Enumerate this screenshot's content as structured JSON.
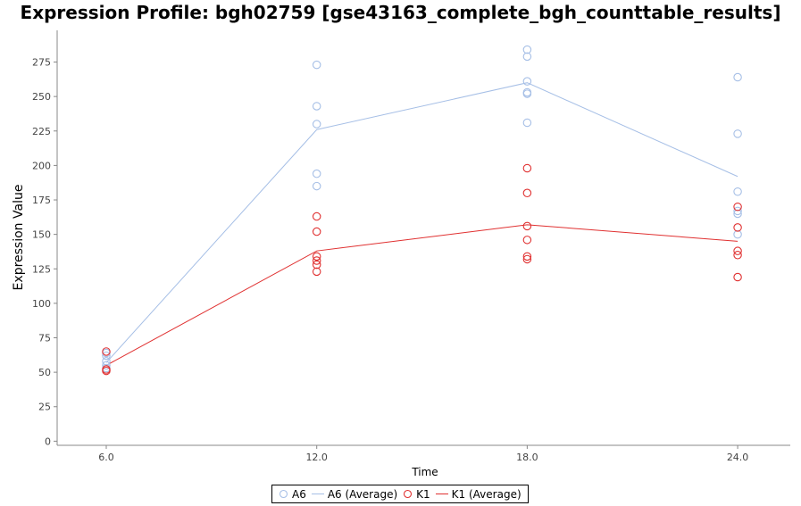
{
  "chart_data": {
    "type": "scatter",
    "title": "Expression Profile: bgh02759 [gse43163_complete_bgh_counttable_results]",
    "xlabel": "Time",
    "ylabel": "Expression Value",
    "x_ticks": [
      "6.0",
      "12.0",
      "18.0",
      "24.0"
    ],
    "y_ticks": [
      "0",
      "25",
      "50",
      "75",
      "100",
      "125",
      "150",
      "175",
      "200",
      "225",
      "250",
      "275"
    ],
    "xlim": [
      4.6,
      25.5
    ],
    "ylim": [
      -3,
      298
    ],
    "grid": false,
    "legend_position": "bottom-center",
    "series": [
      {
        "name": "A6",
        "kind": "points",
        "color": "#a6bfe6",
        "points": [
          [
            6,
            55
          ],
          [
            6,
            58
          ],
          [
            6,
            62
          ],
          [
            6,
            64
          ],
          [
            6,
            53
          ],
          [
            12,
            273
          ],
          [
            12,
            243
          ],
          [
            12,
            230
          ],
          [
            12,
            194
          ],
          [
            12,
            185
          ],
          [
            18,
            284
          ],
          [
            18,
            279
          ],
          [
            18,
            261
          ],
          [
            18,
            253
          ],
          [
            18,
            252
          ],
          [
            18,
            231
          ],
          [
            24,
            264
          ],
          [
            24,
            223
          ],
          [
            24,
            181
          ],
          [
            24,
            167
          ],
          [
            24,
            165
          ],
          [
            24,
            150
          ]
        ]
      },
      {
        "name": "A6 (Average)",
        "kind": "line",
        "color": "#a6bfe6",
        "x": [
          6,
          12,
          18,
          24
        ],
        "y": [
          57,
          226,
          260,
          192
        ]
      },
      {
        "name": "K1",
        "kind": "points",
        "color": "#e03030",
        "points": [
          [
            6,
            65
          ],
          [
            6,
            52
          ],
          [
            6,
            51
          ],
          [
            12,
            163
          ],
          [
            12,
            152
          ],
          [
            12,
            134
          ],
          [
            12,
            131
          ],
          [
            12,
            128
          ],
          [
            12,
            123
          ],
          [
            18,
            198
          ],
          [
            18,
            180
          ],
          [
            18,
            156
          ],
          [
            18,
            146
          ],
          [
            18,
            134
          ],
          [
            18,
            132
          ],
          [
            24,
            170
          ],
          [
            24,
            155
          ],
          [
            24,
            138
          ],
          [
            24,
            135
          ],
          [
            24,
            119
          ]
        ]
      },
      {
        "name": "K1 (Average)",
        "kind": "line",
        "color": "#e03030",
        "x": [
          6,
          12,
          18,
          24
        ],
        "y": [
          55,
          138,
          157,
          145
        ]
      }
    ]
  }
}
